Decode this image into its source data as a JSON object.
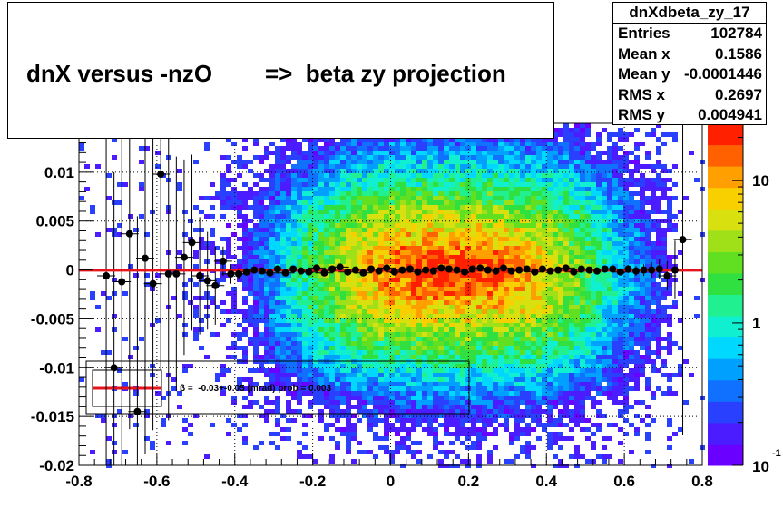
{
  "title": "dnX versus -nzO        =>  beta zy projection",
  "stats": {
    "name": "dnXdbeta_zy_17",
    "rows": [
      {
        "label": "Entries",
        "value": "102784"
      },
      {
        "label": "Mean x",
        "value": "0.1586"
      },
      {
        "label": "Mean y",
        "value": "-0.0001446"
      },
      {
        "label": "RMS x",
        "value": "0.2697"
      },
      {
        "label": "RMS y",
        "value": "0.004941"
      }
    ]
  },
  "fit_label": "β =  -0.03+-0.05 (mrad) prob = 0.003",
  "colors": {
    "fit_line": "#e8141c",
    "markers": "#000000",
    "palette": [
      "#6a00ff",
      "#4a1cff",
      "#2a40ff",
      "#1070ff",
      "#00a0ff",
      "#00d8ff",
      "#10f0d0",
      "#20f090",
      "#30e040",
      "#60e020",
      "#a0e018",
      "#d8e010",
      "#f8d000",
      "#ffa000",
      "#ff6000",
      "#ff2000"
    ]
  },
  "chart_data": {
    "type": "heatmap",
    "title": "",
    "xlabel": "",
    "ylabel": "",
    "xlim": [
      -0.8,
      0.8
    ],
    "ylim": [
      -0.02,
      0.015
    ],
    "x_ticks": [
      "-0.8",
      "-0.6",
      "-0.4",
      "-0.2",
      "0",
      "0.2",
      "0.4",
      "0.6",
      "0.8"
    ],
    "y_ticks": [
      "-0.02",
      "-0.015",
      "-0.01",
      "-0.005",
      "0",
      "0.005",
      "0.01"
    ],
    "z_scale": "log",
    "z_ticks": [
      "10",
      "1"
    ],
    "z_min_label": "10",
    "z_min_exponent": "-1",
    "grid": true,
    "distribution": {
      "x_mean": 0.1586,
      "x_rms": 0.2697,
      "y_mean": -0.0001446,
      "y_rms": 0.004941,
      "entries": 102784
    },
    "profile": {
      "name": "profile",
      "x": [
        -0.73,
        -0.71,
        -0.69,
        -0.67,
        -0.65,
        -0.63,
        -0.61,
        -0.59,
        -0.57,
        -0.55,
        -0.53,
        -0.51,
        -0.49,
        -0.47,
        -0.45,
        -0.43,
        -0.41,
        -0.39,
        -0.37,
        -0.35,
        -0.33,
        -0.31,
        -0.29,
        -0.27,
        -0.25,
        -0.23,
        -0.21,
        -0.19,
        -0.17,
        -0.15,
        -0.13,
        -0.11,
        -0.09,
        -0.07,
        -0.05,
        -0.03,
        -0.01,
        0.01,
        0.03,
        0.05,
        0.07,
        0.09,
        0.11,
        0.13,
        0.15,
        0.17,
        0.19,
        0.21,
        0.23,
        0.25,
        0.27,
        0.29,
        0.31,
        0.33,
        0.35,
        0.37,
        0.39,
        0.41,
        0.43,
        0.45,
        0.47,
        0.49,
        0.51,
        0.53,
        0.55,
        0.57,
        0.59,
        0.61,
        0.63,
        0.65,
        0.67,
        0.69,
        0.71,
        0.73,
        0.75
      ],
      "y": [
        -0.0006,
        -0.01,
        -0.0012,
        0.0037,
        -0.0145,
        0.0012,
        -0.0014,
        0.0098,
        -0.0004,
        -0.0004,
        0.0013,
        0.0028,
        -0.0006,
        -0.0011,
        -0.0016,
        0.0009,
        -0.0004,
        -0.0004,
        -0.0002,
        0.0,
        -0.0001,
        -0.0003,
        0.0001,
        -0.0003,
        0.0001,
        -0.0001,
        -0.0002,
        0.0002,
        -0.0003,
        0.0001,
        0.0003,
        -0.0002,
        0.0,
        -0.0003,
        0.0001,
        -0.0001,
        0.0002,
        -0.0002,
        0.0,
        0.0001,
        -0.0002,
        0.0,
        -0.0001,
        0.0002,
        0.0001,
        0.0,
        -0.0002,
        0.0001,
        0.0002,
        0.0,
        -0.0001,
        0.0002,
        -0.0001,
        0.0,
        0.0001,
        -0.0002,
        0.0001,
        -0.0001,
        0.0,
        0.0002,
        -0.0002,
        0.0001,
        0.0,
        -0.0001,
        0.0001,
        0.0001,
        -0.0002,
        0.0001,
        -0.0001,
        0.0,
        0.0,
        0.0001,
        -0.0006,
        0.0,
        0.0031
      ],
      "err": [
        0.02,
        0.02,
        0.02,
        0.02,
        0.02,
        0.02,
        0.015,
        0.02,
        0.015,
        0.012,
        0.01,
        0.009,
        0.006,
        0.005,
        0.004,
        0.0015,
        0.001,
        0.0006,
        0.0004,
        0.0003,
        0.0003,
        0.0002,
        0.0002,
        0.0002,
        0.00015,
        0.00015,
        0.00015,
        0.0001,
        0.0001,
        0.0001,
        0.0001,
        0.0001,
        0.0001,
        0.0001,
        0.0001,
        0.0001,
        0.0001,
        0.0001,
        0.0001,
        0.0001,
        0.0001,
        0.0001,
        0.0001,
        0.0001,
        0.0001,
        0.0001,
        0.0001,
        0.0001,
        0.0001,
        0.0001,
        0.0001,
        0.0001,
        0.0001,
        0.0001,
        0.0001,
        0.0001,
        0.0001,
        0.0001,
        0.0001,
        0.0001,
        0.0001,
        0.0002,
        0.0002,
        0.0002,
        0.0002,
        0.0003,
        0.0003,
        0.0004,
        0.0005,
        0.0006,
        0.0008,
        0.001,
        0.0015,
        0.003,
        0.02
      ]
    },
    "fit": {
      "y": -3e-05
    }
  }
}
